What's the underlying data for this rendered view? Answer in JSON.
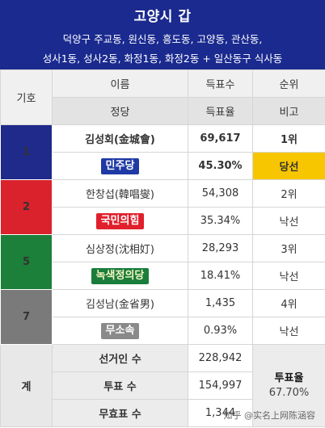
{
  "header": {
    "title": "고양시 갑",
    "sub_line1": "덕양구 주교동, 원신동, 흥도동, 고양동, 관산동,",
    "sub_line2": "성사1동, 성사2동, 화정1동, 화정2동 + 일산동구 식사동"
  },
  "columns": {
    "number": "기호",
    "name": "이름",
    "party": "정당",
    "votes": "득표수",
    "rate": "득표율",
    "rank": "순위",
    "note": "비고"
  },
  "candidates": [
    {
      "number": "1",
      "name": "김성회(金城會)",
      "party": "민주당",
      "votes": "69,617",
      "rate": "45.30%",
      "rank": "1위",
      "note": "당선"
    },
    {
      "number": "2",
      "name": "한창섭(韓唱燮)",
      "party": "국민의힘",
      "votes": "54,308",
      "rate": "35.34%",
      "rank": "2위",
      "note": "낙선"
    },
    {
      "number": "5",
      "name": "심상정(沈相奵)",
      "party": "녹색정의당",
      "votes": "28,293",
      "rate": "18.41%",
      "rank": "3위",
      "note": "낙선"
    },
    {
      "number": "7",
      "name": "김성남(金省男)",
      "party": "무소속",
      "votes": "1,435",
      "rate": "0.93%",
      "rank": "4위",
      "note": "낙선"
    }
  ],
  "totals": {
    "label": "계",
    "electors_label": "선거인 수",
    "electors": "228,942",
    "voters_label": "투표 수",
    "voters": "154,997",
    "invalid_label": "무효표 수",
    "invalid": "1,344",
    "turnout_label": "투표율",
    "turnout": "67.70%"
  },
  "watermark": "知乎 @实名上网陈涵容",
  "colors": {
    "header_bg": "#1a2a8f",
    "democratic": "#1f2a8a",
    "people_power": "#d9222c",
    "green_justice": "#1c7f3a",
    "independent": "#7a7a7a",
    "winner": "#f7c600"
  }
}
